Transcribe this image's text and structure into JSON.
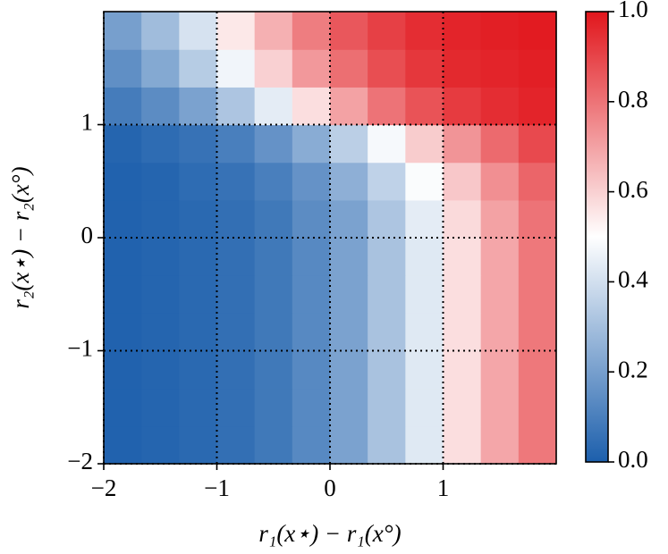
{
  "chart_data": {
    "type": "heatmap",
    "x_label": "r₁(x⋆) − r₁(x°)",
    "y_label": "r₂(x⋆) − r₂(x°)",
    "xlim": [
      -2,
      2
    ],
    "ylim": [
      -2,
      2
    ],
    "xticks": [
      {
        "value": -2,
        "label": "−2"
      },
      {
        "value": -1,
        "label": "−1"
      },
      0,
      1
    ],
    "yticks": [
      {
        "value": -2,
        "label": "−2"
      },
      {
        "value": -1,
        "label": "−1"
      },
      0,
      1
    ],
    "grid": true,
    "colormap": [
      "#1c5fac",
      "#ffffff",
      "#e1161c"
    ],
    "values": [
      [
        0.01,
        0.02,
        0.03,
        0.05,
        0.08,
        0.13,
        0.21,
        0.31,
        0.43,
        0.57,
        0.69,
        0.79
      ],
      [
        0.01,
        0.02,
        0.03,
        0.05,
        0.08,
        0.13,
        0.21,
        0.31,
        0.43,
        0.57,
        0.69,
        0.79
      ],
      [
        0.01,
        0.02,
        0.03,
        0.05,
        0.08,
        0.13,
        0.21,
        0.31,
        0.43,
        0.57,
        0.69,
        0.79
      ],
      [
        0.01,
        0.02,
        0.03,
        0.05,
        0.08,
        0.13,
        0.21,
        0.31,
        0.43,
        0.57,
        0.69,
        0.79
      ],
      [
        0.01,
        0.02,
        0.03,
        0.05,
        0.08,
        0.13,
        0.21,
        0.31,
        0.43,
        0.57,
        0.69,
        0.79
      ],
      [
        0.01,
        0.02,
        0.03,
        0.05,
        0.08,
        0.13,
        0.21,
        0.31,
        0.43,
        0.57,
        0.69,
        0.79
      ],
      [
        0.01,
        0.02,
        0.03,
        0.05,
        0.08,
        0.14,
        0.21,
        0.32,
        0.44,
        0.58,
        0.7,
        0.8
      ],
      [
        0.01,
        0.02,
        0.04,
        0.06,
        0.1,
        0.16,
        0.25,
        0.36,
        0.49,
        0.62,
        0.74,
        0.83
      ],
      [
        0.02,
        0.04,
        0.06,
        0.1,
        0.16,
        0.24,
        0.35,
        0.48,
        0.61,
        0.73,
        0.82,
        0.89
      ],
      [
        0.09,
        0.14,
        0.21,
        0.32,
        0.44,
        0.57,
        0.7,
        0.8,
        0.87,
        0.92,
        0.95,
        0.97
      ],
      [
        0.15,
        0.23,
        0.34,
        0.47,
        0.6,
        0.72,
        0.81,
        0.88,
        0.93,
        0.96,
        0.97,
        0.98
      ],
      [
        0.2,
        0.29,
        0.41,
        0.55,
        0.67,
        0.78,
        0.86,
        0.91,
        0.95,
        0.97,
        0.98,
        0.99
      ]
    ],
    "colorbar": {
      "lim": [
        0,
        1
      ],
      "ticks": [
        {
          "value": 0,
          "label": "0.0"
        },
        {
          "value": 0.2,
          "label": "0.2"
        },
        {
          "value": 0.4,
          "label": "0.4"
        },
        {
          "value": 0.6,
          "label": "0.6"
        },
        {
          "value": 0.8,
          "label": "0.8"
        },
        {
          "value": 1,
          "label": "1.0"
        }
      ]
    }
  }
}
